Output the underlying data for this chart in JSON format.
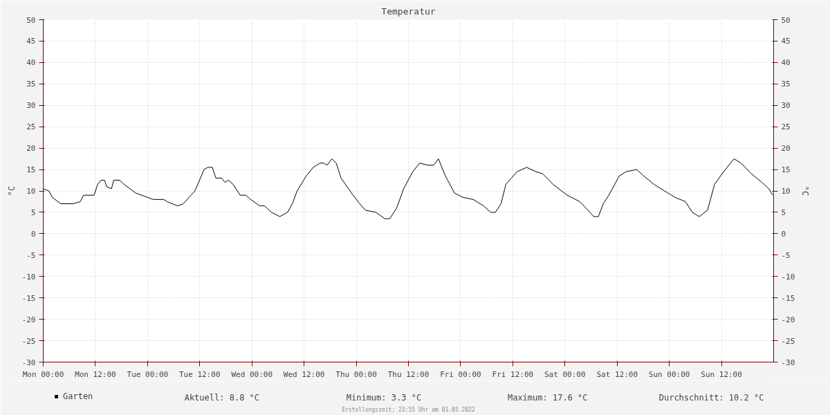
{
  "chart_data": {
    "type": "line",
    "title": "Temperatur",
    "ylabel": "°C",
    "y2label": "°C",
    "x": [
      "2022-04-25T00:00",
      "2022-04-25T01:18",
      "2022-04-25T02:06",
      "2022-04-25T04:00",
      "2022-04-25T06:54",
      "2022-04-25T08:30",
      "2022-04-25T09:18",
      "2022-04-25T11:42",
      "2022-04-25T12:30",
      "2022-04-25T13:18",
      "2022-04-25T14:06",
      "2022-04-25T14:36",
      "2022-04-25T15:42",
      "2022-04-25T16:12",
      "2022-04-25T17:36",
      "2022-04-25T18:36",
      "2022-04-25T21:18",
      "2022-04-26T01:18",
      "2022-04-26T03:42",
      "2022-04-26T04:30",
      "2022-04-26T06:54",
      "2022-04-26T08:12",
      "2022-04-26T10:54",
      "2022-04-26T13:00",
      "2022-04-26T13:48",
      "2022-04-26T14:54",
      "2022-04-26T15:42",
      "2022-04-26T17:00",
      "2022-04-26T17:48",
      "2022-04-26T18:36",
      "2022-04-26T19:42",
      "2022-04-26T21:18",
      "2022-04-26T22:36",
      "2022-04-26T23:42",
      "2022-04-27T01:48",
      "2022-04-27T02:54",
      "2022-04-27T04:30",
      "2022-04-27T06:24",
      "2022-04-27T08:12",
      "2022-04-27T09:18",
      "2022-04-27T10:24",
      "2022-04-27T12:30",
      "2022-04-27T14:06",
      "2022-04-27T15:42",
      "2022-04-27T16:30",
      "2022-04-27T17:18",
      "2022-04-27T18:24",
      "2022-04-27T19:24",
      "2022-04-27T20:30",
      "2022-04-27T22:54",
      "2022-04-28T00:48",
      "2022-04-28T02:06",
      "2022-04-28T04:30",
      "2022-04-28T06:36",
      "2022-04-28T07:42",
      "2022-04-28T09:18",
      "2022-04-28T10:54",
      "2022-04-28T13:00",
      "2022-04-28T14:36",
      "2022-04-28T16:30",
      "2022-04-28T17:48",
      "2022-04-28T18:54",
      "2022-04-28T20:30",
      "2022-04-28T22:36",
      "2022-04-29T00:30",
      "2022-04-29T02:54",
      "2022-04-29T05:18",
      "2022-04-29T06:54",
      "2022-04-29T08:00",
      "2022-04-29T09:18",
      "2022-04-29T10:24",
      "2022-04-29T11:42",
      "2022-04-29T13:00",
      "2022-04-29T15:12",
      "2022-04-29T17:18",
      "2022-04-29T18:54",
      "2022-04-29T21:18",
      "2022-04-30T00:30",
      "2022-04-30T03:24",
      "2022-04-30T05:18",
      "2022-04-30T06:36",
      "2022-04-30T07:42",
      "2022-04-30T08:48",
      "2022-04-30T10:06",
      "2022-04-30T12:30",
      "2022-04-30T14:06",
      "2022-04-30T16:30",
      "2022-04-30T18:06",
      "2022-04-30T20:30",
      "2022-04-30T22:54",
      "2022-05-01T01:18",
      "2022-05-01T03:42",
      "2022-05-01T05:18",
      "2022-05-01T06:54",
      "2022-05-01T08:48",
      "2022-05-01T10:24",
      "2022-05-01T12:30",
      "2022-05-01T14:06",
      "2022-05-01T14:54",
      "2022-05-01T16:30",
      "2022-05-01T18:54",
      "2022-05-01T21:18",
      "2022-05-01T22:54",
      "2022-05-01T23:48"
    ],
    "series": [
      {
        "name": "Garten",
        "color": "#000000",
        "values": [
          10.5,
          10,
          8.5,
          7,
          7,
          7.5,
          9,
          9,
          11.5,
          12.5,
          12.5,
          11,
          10.5,
          12.5,
          12.5,
          11.5,
          9.5,
          8,
          8,
          7.5,
          6.5,
          7,
          10,
          15,
          15.5,
          15.5,
          13,
          13,
          12,
          12.5,
          11.5,
          9,
          9,
          8,
          6.5,
          6.5,
          5,
          4,
          5,
          7,
          10,
          13.5,
          15.5,
          16.5,
          16.5,
          16,
          17.5,
          16.5,
          13,
          9.5,
          7,
          5.5,
          5,
          3.5,
          3.5,
          6,
          10.5,
          14.5,
          16.5,
          16,
          16,
          17.5,
          13.5,
          9.5,
          8.5,
          8,
          6.5,
          5,
          5,
          7,
          11.5,
          13,
          14.5,
          15.5,
          14.5,
          14,
          11.5,
          9,
          7.5,
          5.5,
          4,
          4,
          7,
          9,
          13.5,
          14.5,
          15,
          13.5,
          11.5,
          10,
          8.5,
          7.5,
          5,
          4,
          5.5,
          11.5,
          14.5,
          16.5,
          17.5,
          16.5,
          14,
          12,
          10.5,
          9
        ]
      }
    ],
    "xlim": [
      "2022-04-25T00:00",
      "2022-05-02T00:00"
    ],
    "xticks": [
      {
        "value": "2022-04-25T00:00",
        "label": "Mon 00:00"
      },
      {
        "value": "2022-04-25T12:00",
        "label": "Mon 12:00"
      },
      {
        "value": "2022-04-26T00:00",
        "label": "Tue 00:00"
      },
      {
        "value": "2022-04-26T12:00",
        "label": "Tue 12:00"
      },
      {
        "value": "2022-04-27T00:00",
        "label": "Wed 00:00"
      },
      {
        "value": "2022-04-27T12:00",
        "label": "Wed 12:00"
      },
      {
        "value": "2022-04-28T00:00",
        "label": "Thu 00:00"
      },
      {
        "value": "2022-04-28T12:00",
        "label": "Thu 12:00"
      },
      {
        "value": "2022-04-29T00:00",
        "label": "Fri 00:00"
      },
      {
        "value": "2022-04-29T12:00",
        "label": "Fri 12:00"
      },
      {
        "value": "2022-04-30T00:00",
        "label": "Sat 00:00"
      },
      {
        "value": "2022-04-30T12:00",
        "label": "Sat 12:00"
      },
      {
        "value": "2022-05-01T00:00",
        "label": "Sun 00:00"
      },
      {
        "value": "2022-05-01T12:00",
        "label": "Sun 12:00"
      }
    ],
    "ylim": [
      -30,
      50
    ],
    "yticks": [
      -30,
      -25,
      -20,
      -15,
      -10,
      -5,
      0,
      5,
      10,
      15,
      20,
      25,
      30,
      35,
      40,
      45,
      50
    ],
    "y2lim": [
      -30,
      50
    ],
    "y2ticks": [
      -30,
      -25,
      -20,
      -15,
      -10,
      -5,
      0,
      5,
      10,
      15,
      20,
      25,
      30,
      35,
      40,
      45,
      50
    ],
    "grid": true,
    "legend": "bottom left",
    "marker": "none",
    "line_style": "solid",
    "annotations": [
      "Aktuell: 8.8 °C",
      "Minimum: 3.3 °C",
      "Maximum: 17.6 °C",
      "Durchschnitt: 10.2 °C",
      "Erstellungszeit: 23:55 Uhr am 01.05.2022"
    ]
  }
}
